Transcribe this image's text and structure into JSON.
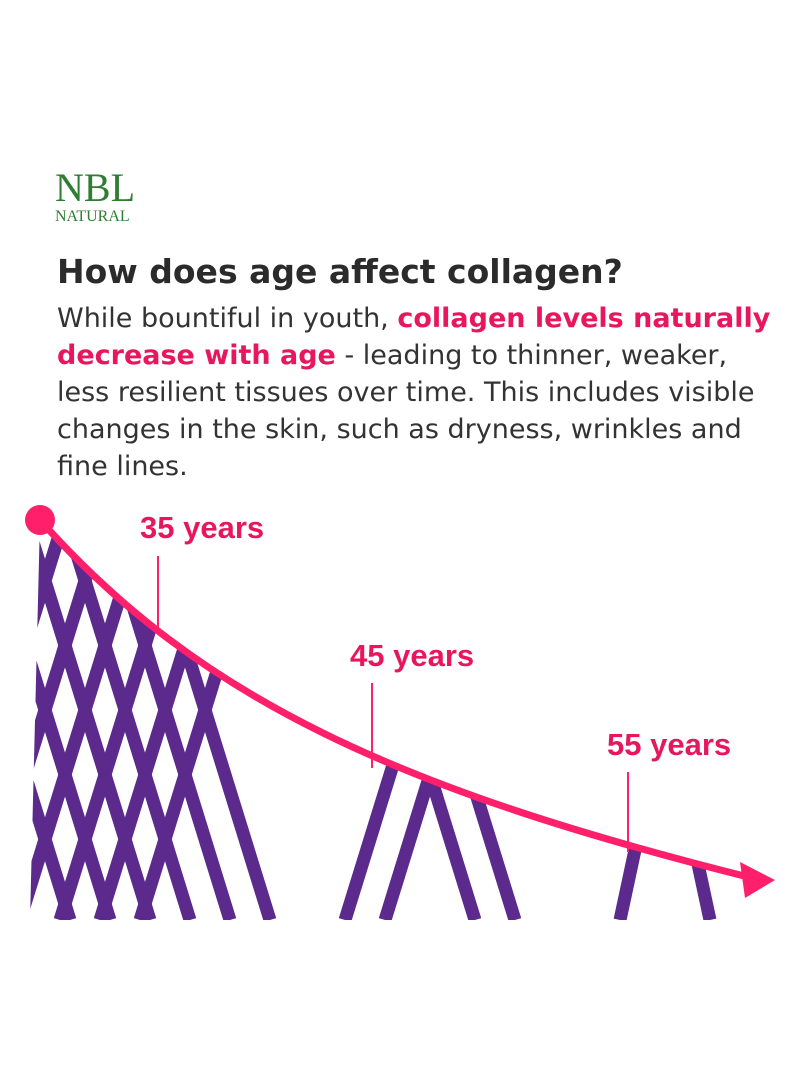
{
  "logo": {
    "name": "NBL",
    "sub": "NATURAL"
  },
  "heading": "How does age affect collagen?",
  "paragraph": {
    "intro": "While bountiful in youth,",
    "highlight": "collagen levels naturally decrease with age",
    "rest": "- leading to thinner, weaker, less resilient tissues over time. This includes visible changes in the skin, such as dryness, wrinkles and fine lines."
  },
  "labels": [
    "35 years",
    "45 years",
    "55 years"
  ]
}
